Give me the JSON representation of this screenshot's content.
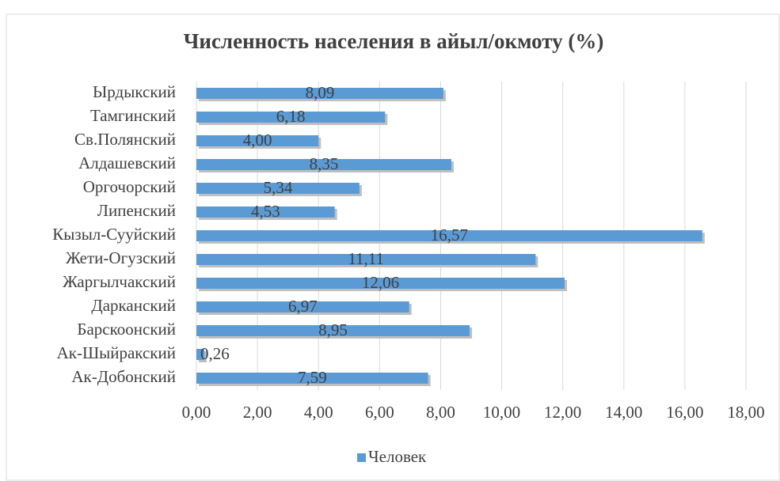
{
  "chart_data": {
    "type": "bar",
    "orientation": "horizontal",
    "title": "Численность населения в айыл/окмоту (%)",
    "categories": [
      "Ырдыкский",
      "Тамгинский",
      "Св.Полянский",
      "Алдашевский",
      "Оргочорский",
      "Липенский",
      "Кызыл-Сууйский",
      "Жети-Огузский",
      "Жаргылчакский",
      "Дарканский",
      "Барскоонский",
      "Ак-Шыйракский",
      "Ак-Добонский"
    ],
    "series": [
      {
        "name": "Человек",
        "color": "#5b9bd5",
        "values": [
          8.09,
          6.18,
          4.0,
          8.35,
          5.34,
          4.53,
          16.57,
          11.11,
          12.06,
          6.97,
          8.95,
          0.26,
          7.59
        ],
        "value_labels": [
          "8,09",
          "6,18",
          "4,00",
          "8,35",
          "5,34",
          "4,53",
          "16,57",
          "11,11",
          "12,06",
          "6,97",
          "8,95",
          "0,26",
          "7,59"
        ]
      }
    ],
    "xlim": [
      0,
      18
    ],
    "xticks": [
      {
        "value": 0,
        "label": "0,00"
      },
      {
        "value": 2,
        "label": "2,00"
      },
      {
        "value": 4,
        "label": "4,00"
      },
      {
        "value": 6,
        "label": "6,00"
      },
      {
        "value": 8,
        "label": "8,00"
      },
      {
        "value": 10,
        "label": "10,00"
      },
      {
        "value": 12,
        "label": "12,00"
      },
      {
        "value": 14,
        "label": "14,00"
      },
      {
        "value": 16,
        "label": "16,00"
      },
      {
        "value": 18,
        "label": "18,00"
      }
    ],
    "grid": true,
    "legend": "bottom"
  }
}
